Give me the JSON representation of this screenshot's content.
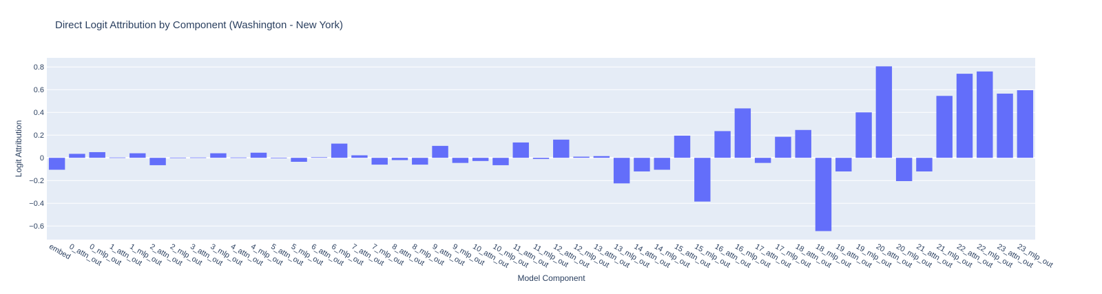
{
  "chart_data": {
    "type": "bar",
    "title": "Direct Logit Attribution by Component (Washington - New York)",
    "xlabel": "Model Component",
    "ylabel": "Logit Attribution",
    "ylim": [
      -0.72,
      0.88
    ],
    "yticks": [
      -0.6,
      -0.4,
      -0.2,
      0,
      0.2,
      0.4,
      0.6,
      0.8
    ],
    "ytick_labels": [
      "−0.6",
      "−0.4",
      "−0.2",
      "0",
      "0.2",
      "0.4",
      "0.6",
      "0.8"
    ],
    "grid": true,
    "colors": {
      "bar": "#636efa",
      "plot_bg": "#e5ecf6",
      "grid": "#ffffff"
    },
    "categories": [
      "embed",
      "0_attn_out",
      "0_mlp_out",
      "1_attn_out",
      "1_mlp_out",
      "2_attn_out",
      "2_mlp_out",
      "3_attn_out",
      "3_mlp_out",
      "4_attn_out",
      "4_mlp_out",
      "5_attn_out",
      "5_mlp_out",
      "6_attn_out",
      "6_mlp_out",
      "7_attn_out",
      "7_mlp_out",
      "8_attn_out",
      "8_mlp_out",
      "9_attn_out",
      "9_mlp_out",
      "10_attn_out",
      "10_mlp_out",
      "11_attn_out",
      "11_mlp_out",
      "12_attn_out",
      "12_mlp_out",
      "13_attn_out",
      "13_mlp_out",
      "14_attn_out",
      "14_mlp_out",
      "15_attn_out",
      "15_mlp_out",
      "16_attn_out",
      "16_mlp_out",
      "17_attn_out",
      "17_mlp_out",
      "18_attn_out",
      "18_mlp_out",
      "19_attn_out",
      "19_mlp_out",
      "20_attn_out",
      "20_mlp_out",
      "21_attn_out",
      "21_mlp_out",
      "22_attn_out",
      "22_mlp_out",
      "23_attn_out",
      "23_mlp_out"
    ],
    "values": [
      -0.105,
      0.035,
      0.05,
      0.003,
      0.04,
      -0.065,
      0.002,
      0.003,
      0.04,
      0.003,
      0.045,
      0.001,
      -0.035,
      0.005,
      0.125,
      0.022,
      -0.06,
      -0.02,
      -0.06,
      0.105,
      -0.045,
      -0.028,
      -0.065,
      0.135,
      -0.01,
      0.16,
      0.01,
      0.015,
      -0.225,
      -0.12,
      -0.105,
      0.195,
      -0.385,
      0.235,
      0.435,
      -0.045,
      0.185,
      0.245,
      -0.645,
      -0.12,
      0.4,
      0.805,
      -0.205,
      -0.12,
      0.545,
      0.74,
      0.76,
      0.565,
      0.595
    ]
  }
}
